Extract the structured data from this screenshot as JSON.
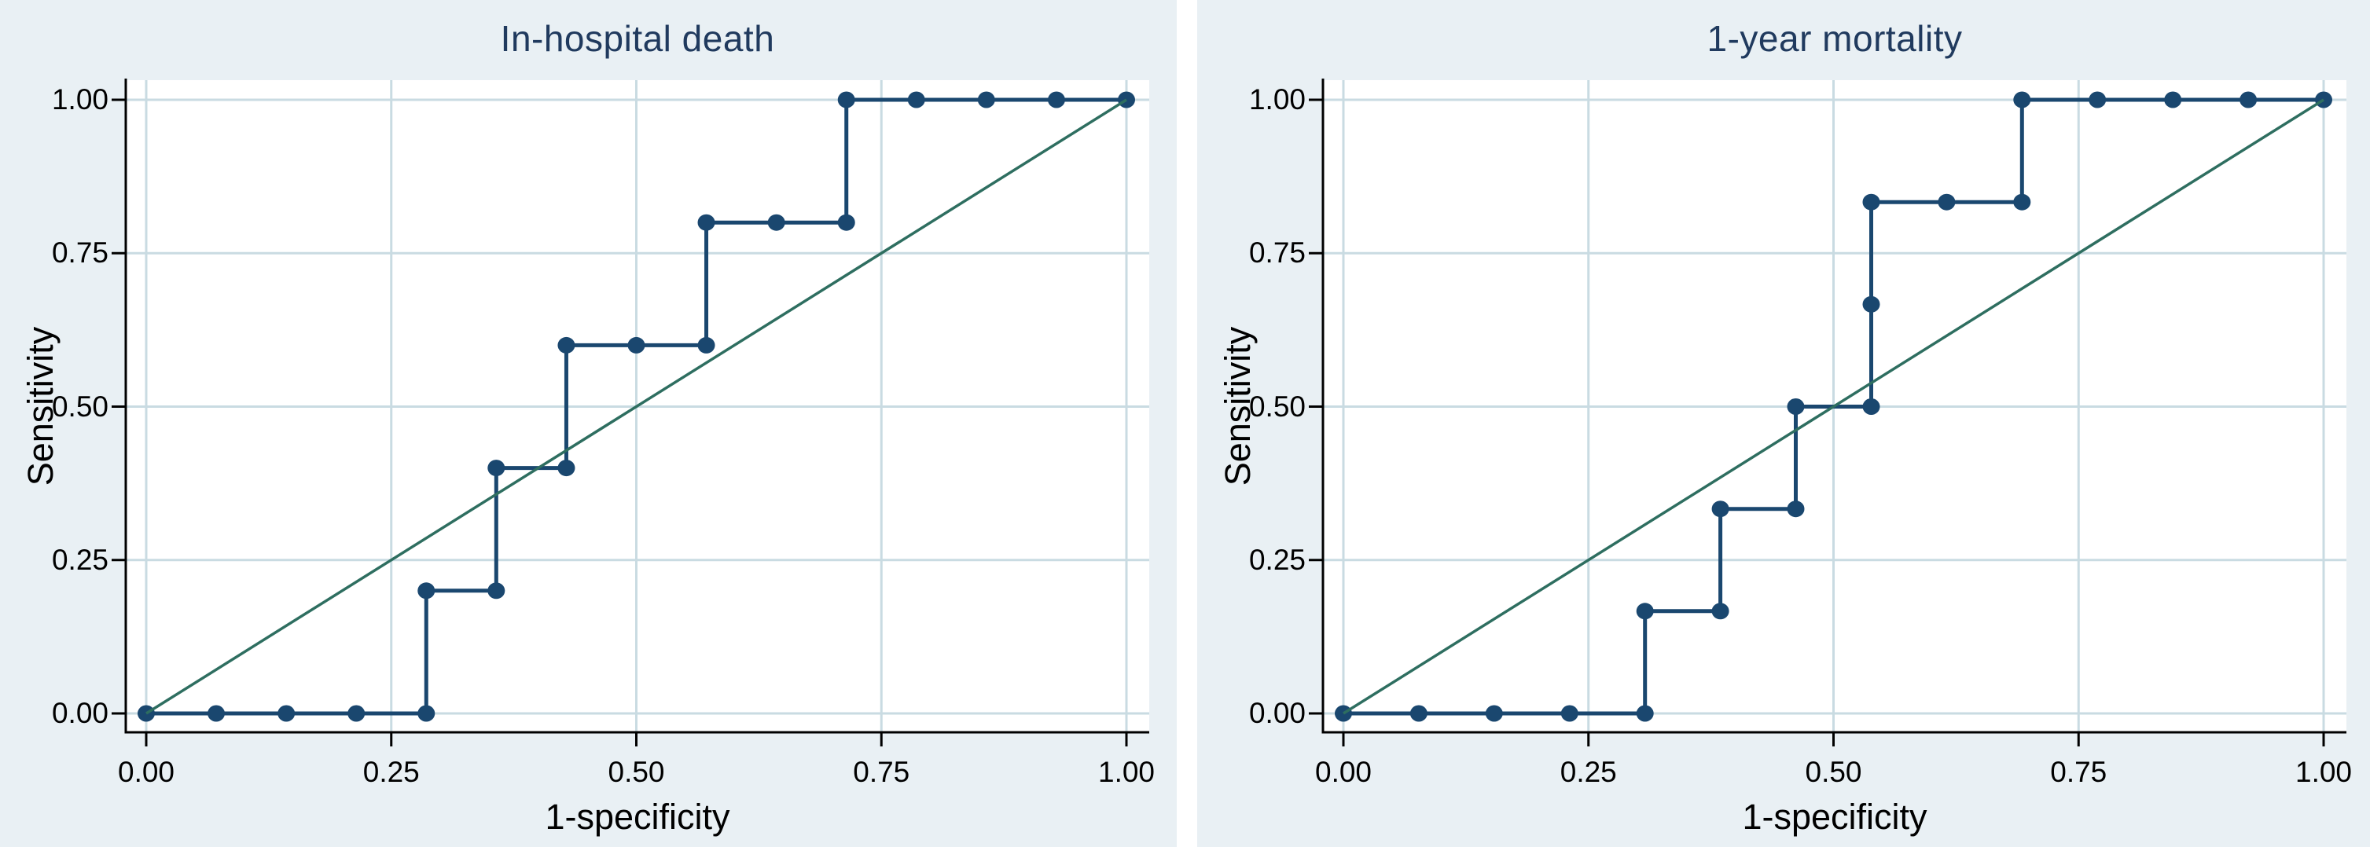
{
  "colors": {
    "page_bg": "#ffffff",
    "panel_bg": "#e9f0f4",
    "plot_bg": "#ffffff",
    "grid": "#c9dbe2",
    "axis": "#000000",
    "title_text": "#203a5e",
    "label_text": "#000000",
    "roc_line": "#1a476f",
    "marker": "#1a476f",
    "reference_line": "#2e6e60"
  },
  "chart_data": [
    {
      "type": "line",
      "title": "In-hospital death",
      "xlabel": "1-specificity",
      "ylabel": "Sensitivity",
      "xlim": [
        0,
        1
      ],
      "ylim": [
        0,
        1
      ],
      "grid": true,
      "legend": "none",
      "x_tick_values": [
        0,
        0.25,
        0.5,
        0.75,
        1
      ],
      "x_tick_labels": [
        "0.00",
        "0.25",
        "0.50",
        "0.75",
        "1.00"
      ],
      "y_tick_values": [
        0,
        0.25,
        0.5,
        0.75,
        1
      ],
      "y_tick_labels": [
        "0.00",
        "0.25",
        "0.50",
        "0.75",
        "1.00"
      ],
      "series": [
        {
          "name": "ROC curve",
          "style": "step_with_markers",
          "points": [
            [
              0,
              0
            ],
            [
              0.0714,
              0
            ],
            [
              0.1429,
              0
            ],
            [
              0.2143,
              0
            ],
            [
              0.2857,
              0
            ],
            [
              0.2857,
              0.2
            ],
            [
              0.3571,
              0.2
            ],
            [
              0.3571,
              0.4
            ],
            [
              0.4286,
              0.4
            ],
            [
              0.4286,
              0.6
            ],
            [
              0.5,
              0.6
            ],
            [
              0.5714,
              0.6
            ],
            [
              0.5714,
              0.8
            ],
            [
              0.6429,
              0.8
            ],
            [
              0.7143,
              0.8
            ],
            [
              0.7143,
              1
            ],
            [
              0.7857,
              1
            ],
            [
              0.8571,
              1
            ],
            [
              0.9286,
              1
            ],
            [
              1,
              1
            ]
          ]
        },
        {
          "name": "Reference diagonal",
          "style": "straight",
          "points": [
            [
              0,
              0
            ],
            [
              1,
              1
            ]
          ]
        }
      ]
    },
    {
      "type": "line",
      "title": "1-year mortality",
      "xlabel": "1-specificity",
      "ylabel": "Sensitivity",
      "xlim": [
        0,
        1
      ],
      "ylim": [
        0,
        1
      ],
      "grid": true,
      "legend": "none",
      "x_tick_values": [
        0,
        0.25,
        0.5,
        0.75,
        1
      ],
      "x_tick_labels": [
        "0.00",
        "0.25",
        "0.50",
        "0.75",
        "1.00"
      ],
      "y_tick_values": [
        0,
        0.25,
        0.5,
        0.75,
        1
      ],
      "y_tick_labels": [
        "0.00",
        "0.25",
        "0.50",
        "0.75",
        "1.00"
      ],
      "series": [
        {
          "name": "ROC curve",
          "style": "step_with_markers",
          "points": [
            [
              0,
              0
            ],
            [
              0.0769,
              0
            ],
            [
              0.1538,
              0
            ],
            [
              0.2308,
              0
            ],
            [
              0.3077,
              0
            ],
            [
              0.3077,
              0.1667
            ],
            [
              0.3846,
              0.1667
            ],
            [
              0.3846,
              0.3333
            ],
            [
              0.4615,
              0.3333
            ],
            [
              0.4615,
              0.5
            ],
            [
              0.5385,
              0.5
            ],
            [
              0.5385,
              0.6667
            ],
            [
              0.5385,
              0.8333
            ],
            [
              0.6154,
              0.8333
            ],
            [
              0.6923,
              0.8333
            ],
            [
              0.6923,
              1
            ],
            [
              0.7692,
              1
            ],
            [
              0.8462,
              1
            ],
            [
              0.9231,
              1
            ],
            [
              1,
              1
            ]
          ]
        },
        {
          "name": "Reference diagonal",
          "style": "straight",
          "points": [
            [
              0,
              0
            ],
            [
              1,
              1
            ]
          ]
        }
      ]
    }
  ]
}
